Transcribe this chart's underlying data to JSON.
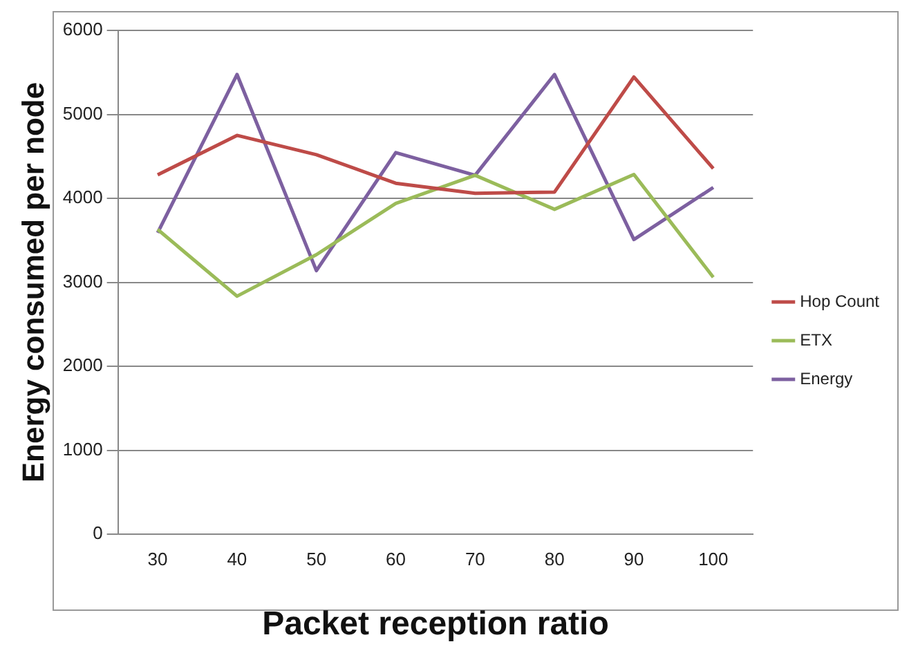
{
  "chart_data": {
    "type": "line",
    "xlabel": "Packet reception ratio",
    "ylabel": "Energy consumed per node",
    "categories": [
      "30",
      "40",
      "50",
      "60",
      "70",
      "80",
      "90",
      "100"
    ],
    "series": [
      {
        "name": "Hop Count",
        "color": "#be4b48",
        "values": [
          4280,
          4750,
          4520,
          4180,
          4060,
          4075,
          5445,
          4355
        ]
      },
      {
        "name": "ETX",
        "color": "#9bbb59",
        "values": [
          3630,
          2835,
          3330,
          3940,
          4275,
          3870,
          4285,
          3060
        ]
      },
      {
        "name": "Energy",
        "color": "#7d60a0",
        "values": [
          3590,
          5475,
          3140,
          4545,
          4275,
          5475,
          3510,
          4130
        ]
      }
    ],
    "ylim": [
      0,
      6000
    ],
    "yticks": [
      0,
      1000,
      2000,
      3000,
      4000,
      5000,
      6000
    ],
    "grid": "y",
    "legend": "right",
    "marker": "none",
    "line_style": "solid"
  }
}
